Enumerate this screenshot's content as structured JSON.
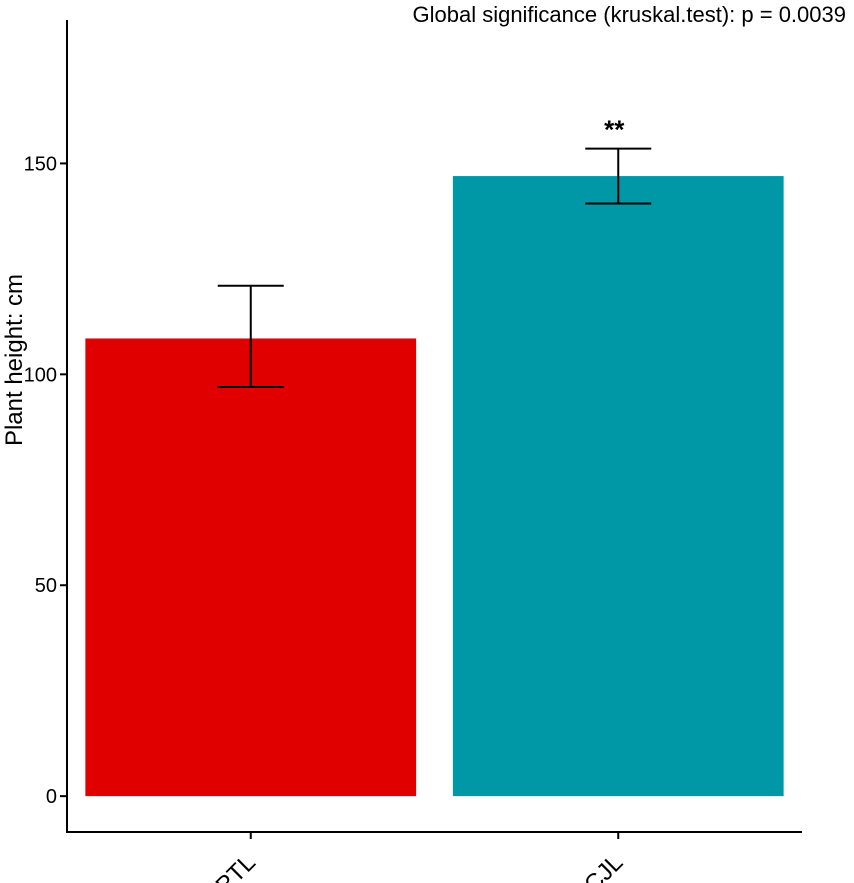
{
  "chart_data": {
    "type": "bar",
    "title": "Global significance (kruskal.test): p = 0.0039",
    "xlabel": "",
    "ylabel": "Plant height: cm",
    "categories": [
      "PTL",
      "CJL"
    ],
    "values": [
      108.5,
      147
    ],
    "error_low": [
      97,
      140.5
    ],
    "error_high": [
      121,
      153.5
    ],
    "significance": [
      "",
      "**"
    ],
    "colors": [
      "#e00000",
      "#0097a7"
    ],
    "yticks": [
      0,
      50,
      100,
      150
    ],
    "ylim": [
      -8.5,
      184
    ],
    "grid": false,
    "legend": "none"
  }
}
